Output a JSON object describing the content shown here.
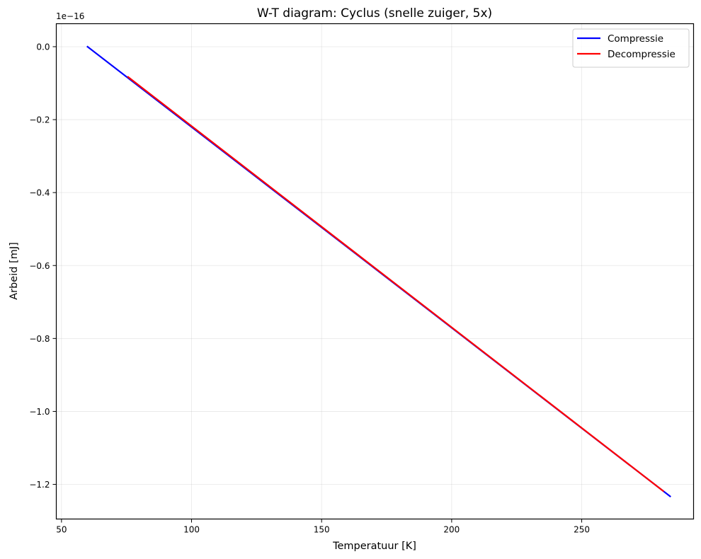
{
  "chart_data": {
    "type": "line",
    "title": "W-T diagram: Cyclus (snelle zuiger, 5x)",
    "xlabel": "Temperatuur [K]",
    "ylabel": "Arbeid [mJ]",
    "y_offset_label": "1e−16",
    "xlim": [
      48,
      293
    ],
    "ylim": [
      -1.295,
      0.063
    ],
    "y_scale": "1e-16",
    "grid": true,
    "legend_position": "upper right",
    "x_ticks": [
      50,
      100,
      150,
      200,
      250
    ],
    "x_tick_labels": [
      "50",
      "100",
      "150",
      "200",
      "250"
    ],
    "y_ticks": [
      0.0,
      -0.2,
      -0.4,
      -0.6,
      -0.8,
      -1.0,
      -1.2
    ],
    "y_tick_labels": [
      "0.0",
      "−0.2",
      "−0.4",
      "−0.6",
      "−0.8",
      "−1.0",
      "−1.2"
    ],
    "series": [
      {
        "name": "Compressie",
        "color": "#0000ff",
        "x": [
          60.0,
          284.0
        ],
        "y": [
          0.0,
          -1.233
        ]
      },
      {
        "name": "Decompressie",
        "color": "#ff0000",
        "x": [
          75.6,
          281.3
        ],
        "y": [
          -0.083,
          -1.218
        ]
      }
    ]
  },
  "legend": {
    "items": [
      {
        "label": "Compressie",
        "color": "#0000ff"
      },
      {
        "label": "Decompressie",
        "color": "#ff0000"
      }
    ]
  }
}
